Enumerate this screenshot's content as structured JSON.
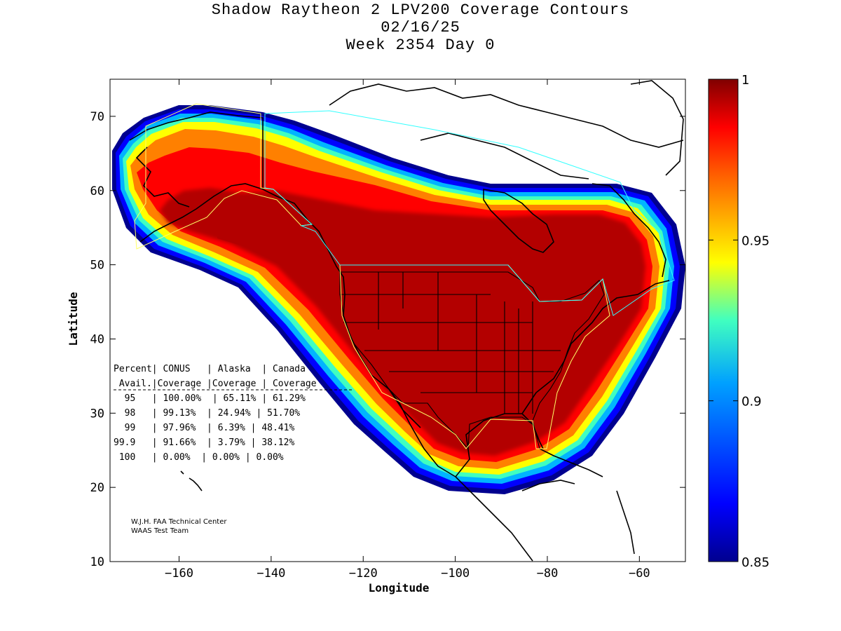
{
  "header": {
    "title": "Shadow Raytheon 2 LPV200 Coverage Contours",
    "date": "02/16/25",
    "week": "Week 2354 Day 0"
  },
  "axes": {
    "xlabel": "Longitude",
    "ylabel": "Latitude",
    "xlim": [
      -175,
      -50
    ],
    "ylim": [
      10,
      75
    ],
    "xticks": [
      -160,
      -140,
      -120,
      -100,
      -80,
      -60
    ],
    "yticks": [
      10,
      20,
      30,
      40,
      50,
      60,
      70
    ]
  },
  "colorbar": {
    "range": [
      0.85,
      1
    ],
    "ticks": [
      {
        "value": 1,
        "label": "1"
      },
      {
        "value": 0.95,
        "label": "0.95"
      },
      {
        "value": 0.9,
        "label": "0.9"
      },
      {
        "value": 0.85,
        "label": "0.85"
      }
    ]
  },
  "table": {
    "header1": "Percent| CONUS   | Alaska  | Canada",
    "header2": " Avail.|Coverage |Coverage | Coverage",
    "rows": [
      "  95   | 100.00%  | 65.11% | 61.29%",
      "  98   | 99.13%  | 24.94% | 51.70%",
      "  99   | 97.96%  | 6.39% | 48.41%",
      "99.9   | 91.66%  | 3.79% | 38.12%",
      " 100   | 0.00%  | 0.00% | 0.00%"
    ]
  },
  "credit": {
    "line1": "W.J.H. FAA Technical Center",
    "line2": "WAAS Test Team"
  },
  "colors": {
    "max": "#b30000",
    "orange": "#ff8000",
    "yellow": "#ffff00",
    "cyan": "#00e5ff",
    "blue": "#0000c8",
    "min": "#00008f",
    "region_outline_yellow": "#ffff66",
    "region_outline_cyan": "#33ffff"
  },
  "chart_data": {
    "type": "heatmap",
    "title": "Shadow Raytheon 2 LPV200 Coverage Contours",
    "xlabel": "Longitude",
    "ylabel": "Latitude",
    "xlim": [
      -175,
      -50
    ],
    "ylim": [
      10,
      75
    ],
    "colorbar_range": [
      0.85,
      1
    ],
    "coverage_table": [
      {
        "availability": "95",
        "conus": "100.00%",
        "alaska": "65.11%",
        "canada": "61.29%"
      },
      {
        "availability": "98",
        "conus": "99.13%",
        "alaska": "24.94%",
        "canada": "51.70%"
      },
      {
        "availability": "99",
        "conus": "97.96%",
        "alaska": "6.39%",
        "canada": "48.41%"
      },
      {
        "availability": "99.9",
        "conus": "91.66%",
        "alaska": "3.79%",
        "canada": "38.12%"
      },
      {
        "availability": "100",
        "conus": "0.00%",
        "alaska": "0.00%",
        "canada": "0.00%"
      }
    ]
  }
}
